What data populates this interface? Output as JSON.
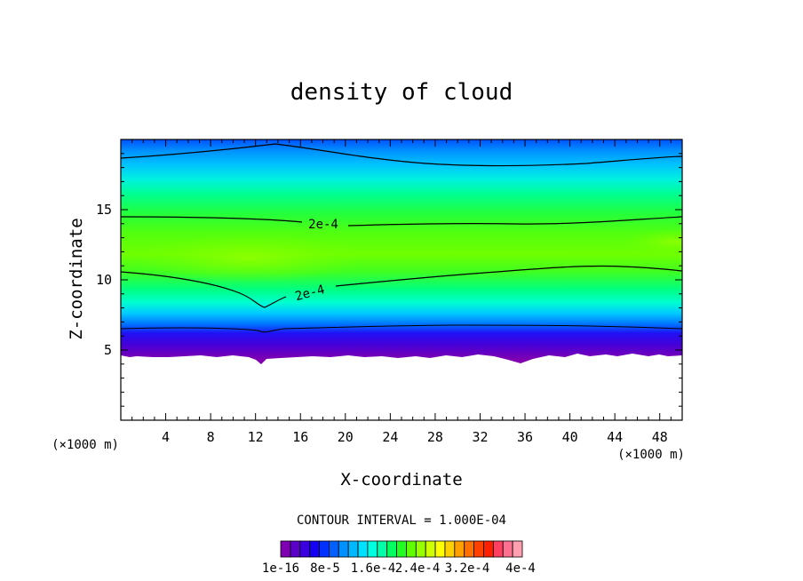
{
  "chart_data": {
    "type": "contour",
    "title": "density of cloud",
    "xlabel": "X-coordinate",
    "ylabel": "Z-coordinate",
    "x_unit_left": "(×1000 m)",
    "x_unit_right": "(×1000 m)",
    "xlim": [
      0,
      50
    ],
    "ylim": [
      0,
      20
    ],
    "xticks": [
      "4",
      "8",
      "12",
      "16",
      "20",
      "24",
      "28",
      "32",
      "36",
      "40",
      "44",
      "48"
    ],
    "yticks": [
      "5",
      "10",
      "15"
    ],
    "contour_interval_text": "CONTOUR INTERVAL = 1.000E-04",
    "contour_labels": [
      "2e-4",
      "2e-4"
    ],
    "colorbar_labels": [
      "1e-16",
      "8e-5",
      "1.6e-4",
      "2.4e-4",
      "3.2e-4",
      "4e-4"
    ],
    "colorbar_colors": [
      "#7f00b0",
      "#5a00c8",
      "#3b00e0",
      "#1500f5",
      "#0030ff",
      "#0060ff",
      "#0090ff",
      "#00b8ff",
      "#00e0ff",
      "#00ffe0",
      "#00ffa8",
      "#00ff60",
      "#20ff20",
      "#60ff00",
      "#98ff00",
      "#d0ff00",
      "#ffff00",
      "#ffd000",
      "#ffa000",
      "#ff7000",
      "#ff4000",
      "#ff2000",
      "#ff4060",
      "#ff7090",
      "#ffa0b0"
    ],
    "field_peak_value": 0.00024,
    "cloud_base_km": 5,
    "cloud_top_km": 20,
    "plot_background": "#ffffff"
  }
}
